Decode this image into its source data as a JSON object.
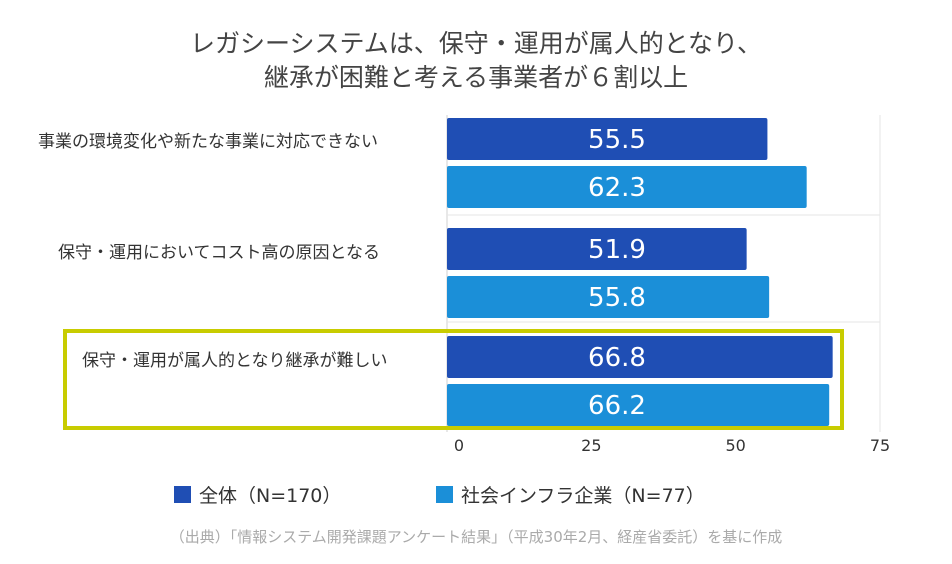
{
  "title_line1": "レガシーシステムは、保守・運用が属人的となり、",
  "title_line2": "継承が困難と考える事業者が６割以上",
  "legend": [
    {
      "label": "全体（N=170）",
      "color": "#1f4eb4"
    },
    {
      "label": "社会インフラ企業（N=77）",
      "color": "#1b8fd8"
    }
  ],
  "source": "（出典）「情報システム開発課題アンケート結果」（平成30年2月、経産省委託）を基に作成",
  "chart_data": {
    "type": "bar",
    "orientation": "horizontal",
    "categories": [
      "事業の環境変化や新たな事業に対応できない",
      "保守・運用においてコスト高の原因となる",
      "保守・運用が属人的となり継承が難しい"
    ],
    "series": [
      {
        "name": "全体（N=170）",
        "values": [
          55.5,
          51.9,
          66.8
        ],
        "color": "#1f4eb4"
      },
      {
        "name": "社会インフラ企業（N=77）",
        "values": [
          62.3,
          55.8,
          66.2
        ],
        "color": "#1b8fd8"
      }
    ],
    "xlim": [
      0,
      75
    ],
    "xticks": [
      0,
      25,
      50,
      75
    ],
    "highlighted_category": "保守・運用が属人的となり継承が難しい",
    "legend_position": "bottom",
    "grid": true
  }
}
